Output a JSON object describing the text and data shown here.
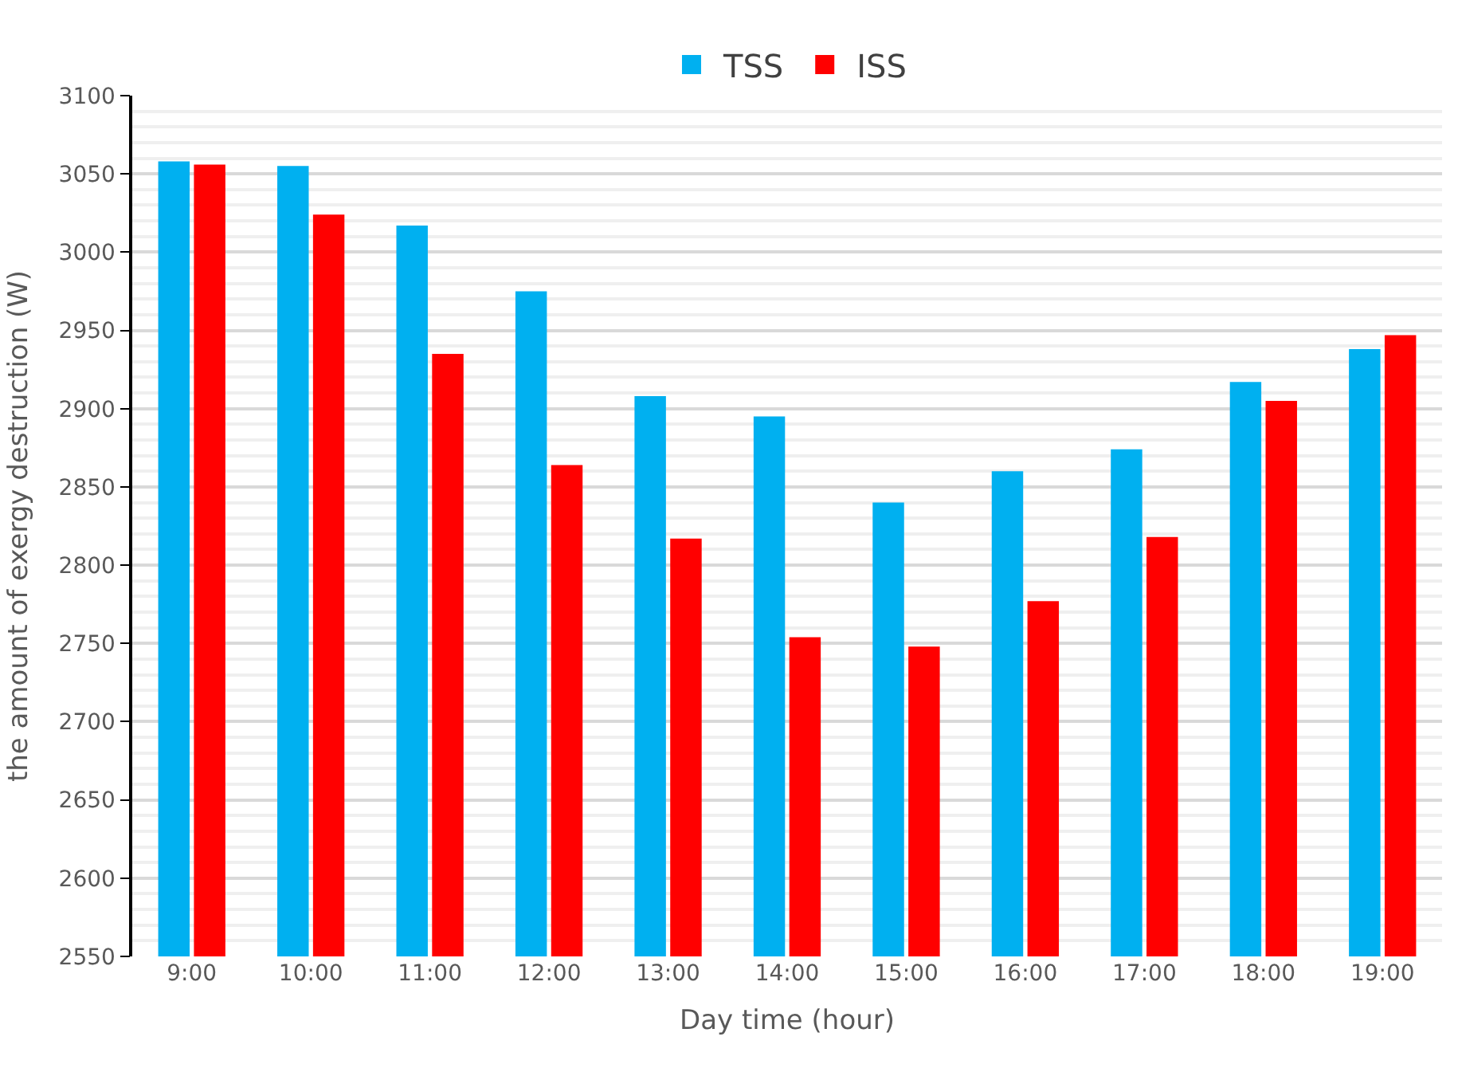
{
  "chart_data": {
    "type": "bar",
    "categories": [
      "9:00",
      "10:00",
      "11:00",
      "12:00",
      "13:00",
      "14:00",
      "15:00",
      "16:00",
      "17:00",
      "18:00",
      "19:00"
    ],
    "series": [
      {
        "name": "TSS",
        "color": "#00b0f0",
        "values": [
          3058,
          3055,
          3017,
          2975,
          2908,
          2895,
          2840,
          2860,
          2874,
          2917,
          2938
        ]
      },
      {
        "name": "ISS",
        "color": "#ff0000",
        "values": [
          3056,
          3024,
          2935,
          2864,
          2817,
          2754,
          2748,
          2777,
          2818,
          2905,
          2947
        ]
      }
    ],
    "xlabel": "Day time (hour)",
    "ylabel": "the amount of exergy destruction (W)",
    "ylim": [
      2550,
      3100
    ],
    "yticks": [
      2550,
      2600,
      2650,
      2700,
      2750,
      2800,
      2850,
      2900,
      2950,
      3000,
      3050,
      3100
    ],
    "grid": "y",
    "legend": "top"
  }
}
